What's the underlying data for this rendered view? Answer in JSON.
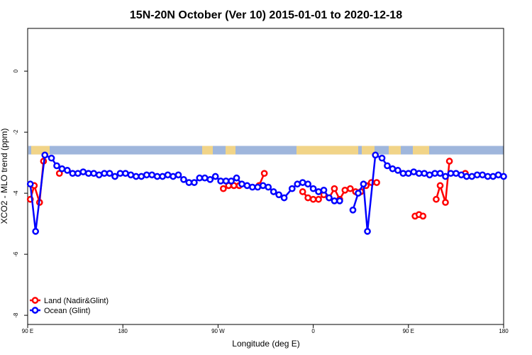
{
  "chart_data": {
    "type": "line",
    "title": "15N-20N October (Ver 10)   2015-01-01 to 2020-12-18",
    "xlabel": "Longitude (deg E)",
    "ylabel": "XCO2 - MLO trend (ppm)",
    "xlim": [
      90,
      450
    ],
    "ylim": [
      -8.3,
      1.4
    ],
    "x_ticks": [
      90,
      162,
      234,
      306,
      378,
      450
    ],
    "x_tick_labels": [
      "90 E",
      "180",
      "90 W",
      "0",
      "90 E",
      "180"
    ],
    "y_ticks": [
      0,
      -2,
      -4,
      -6,
      -8
    ],
    "y_tick_labels": [
      "0",
      "-2",
      "-4",
      "-6",
      "-8"
    ],
    "grid": false,
    "legend_position": "bottom-left",
    "series": [
      {
        "name": "Land (Nadir&Glint)",
        "color": "#ff0000",
        "points": [
          [
            92,
            -4.2
          ],
          [
            95,
            -3.75
          ],
          [
            99,
            -4.3
          ],
          [
            102,
            -2.95
          ],
          [
            114,
            -3.35
          ],
          [
            238,
            -3.85
          ],
          [
            242,
            -3.75
          ],
          [
            246,
            -3.75
          ],
          [
            250,
            -3.75
          ],
          [
            265,
            -3.75
          ],
          [
            269,
            -3.35
          ],
          [
            298,
            -3.95
          ],
          [
            302,
            -4.15
          ],
          [
            306,
            -4.2
          ],
          [
            310,
            -4.2
          ],
          [
            314,
            -4.05
          ],
          [
            318,
            -4.15
          ],
          [
            322,
            -3.85
          ],
          [
            326,
            -4.2
          ],
          [
            330,
            -3.9
          ],
          [
            334,
            -3.85
          ],
          [
            338,
            -3.95
          ],
          [
            342,
            -3.95
          ],
          [
            346,
            -3.75
          ],
          [
            350,
            -3.65
          ],
          [
            354,
            -3.65
          ],
          [
            383,
            -4.75
          ],
          [
            386,
            -4.7
          ],
          [
            389,
            -4.75
          ],
          [
            399,
            -4.2
          ],
          [
            402,
            -3.75
          ],
          [
            406,
            -4.3
          ],
          [
            409,
            -2.95
          ],
          [
            421,
            -3.35
          ]
        ]
      },
      {
        "name": "Ocean (Glint)",
        "color": "#0000ff",
        "points": [
          [
            92,
            -3.7
          ],
          [
            96,
            -5.25
          ],
          [
            103,
            -2.75
          ],
          [
            108,
            -2.85
          ],
          [
            112,
            -3.1
          ],
          [
            116,
            -3.2
          ],
          [
            120,
            -3.25
          ],
          [
            124,
            -3.35
          ],
          [
            128,
            -3.35
          ],
          [
            132,
            -3.3
          ],
          [
            136,
            -3.35
          ],
          [
            140,
            -3.35
          ],
          [
            144,
            -3.4
          ],
          [
            148,
            -3.35
          ],
          [
            152,
            -3.35
          ],
          [
            156,
            -3.45
          ],
          [
            160,
            -3.35
          ],
          [
            164,
            -3.35
          ],
          [
            168,
            -3.4
          ],
          [
            172,
            -3.45
          ],
          [
            176,
            -3.45
          ],
          [
            180,
            -3.4
          ],
          [
            184,
            -3.4
          ],
          [
            188,
            -3.45
          ],
          [
            192,
            -3.45
          ],
          [
            196,
            -3.4
          ],
          [
            200,
            -3.45
          ],
          [
            204,
            -3.4
          ],
          [
            208,
            -3.55
          ],
          [
            212,
            -3.65
          ],
          [
            216,
            -3.65
          ],
          [
            220,
            -3.5
          ],
          [
            224,
            -3.5
          ],
          [
            228,
            -3.55
          ],
          [
            232,
            -3.45
          ],
          [
            236,
            -3.6
          ],
          [
            240,
            -3.6
          ],
          [
            244,
            -3.6
          ],
          [
            248,
            -3.5
          ],
          [
            252,
            -3.7
          ],
          [
            256,
            -3.75
          ],
          [
            260,
            -3.8
          ],
          [
            264,
            -3.8
          ],
          [
            268,
            -3.75
          ],
          [
            272,
            -3.8
          ],
          [
            276,
            -3.95
          ],
          [
            280,
            -4.05
          ],
          [
            284,
            -4.15
          ],
          [
            290,
            -3.85
          ],
          [
            294,
            -3.7
          ],
          [
            298,
            -3.65
          ],
          [
            302,
            -3.7
          ],
          [
            306,
            -3.85
          ],
          [
            310,
            -3.95
          ],
          [
            314,
            -3.9
          ],
          [
            318,
            -4.15
          ],
          [
            322,
            -4.25
          ],
          [
            326,
            -4.25
          ],
          [
            336,
            -4.55
          ],
          [
            340,
            -4.0
          ],
          [
            344,
            -3.7
          ],
          [
            347,
            -5.25
          ],
          [
            353,
            -2.75
          ],
          [
            358,
            -2.85
          ],
          [
            362,
            -3.1
          ],
          [
            366,
            -3.2
          ],
          [
            370,
            -3.25
          ],
          [
            374,
            -3.35
          ],
          [
            378,
            -3.35
          ],
          [
            382,
            -3.3
          ],
          [
            386,
            -3.35
          ],
          [
            390,
            -3.35
          ],
          [
            394,
            -3.4
          ],
          [
            398,
            -3.35
          ],
          [
            402,
            -3.35
          ],
          [
            406,
            -3.45
          ],
          [
            410,
            -3.35
          ],
          [
            414,
            -3.35
          ],
          [
            418,
            -3.4
          ],
          [
            422,
            -3.45
          ],
          [
            426,
            -3.45
          ],
          [
            430,
            -3.4
          ],
          [
            434,
            -3.4
          ],
          [
            438,
            -3.45
          ],
          [
            442,
            -3.45
          ],
          [
            446,
            -3.4
          ],
          [
            450,
            -3.45
          ]
        ]
      }
    ],
    "map_band": {
      "y_range": [
        -2.73,
        -2.45
      ],
      "ocean_color": "#9fb6dc",
      "land_color": "#f9d77e"
    }
  }
}
